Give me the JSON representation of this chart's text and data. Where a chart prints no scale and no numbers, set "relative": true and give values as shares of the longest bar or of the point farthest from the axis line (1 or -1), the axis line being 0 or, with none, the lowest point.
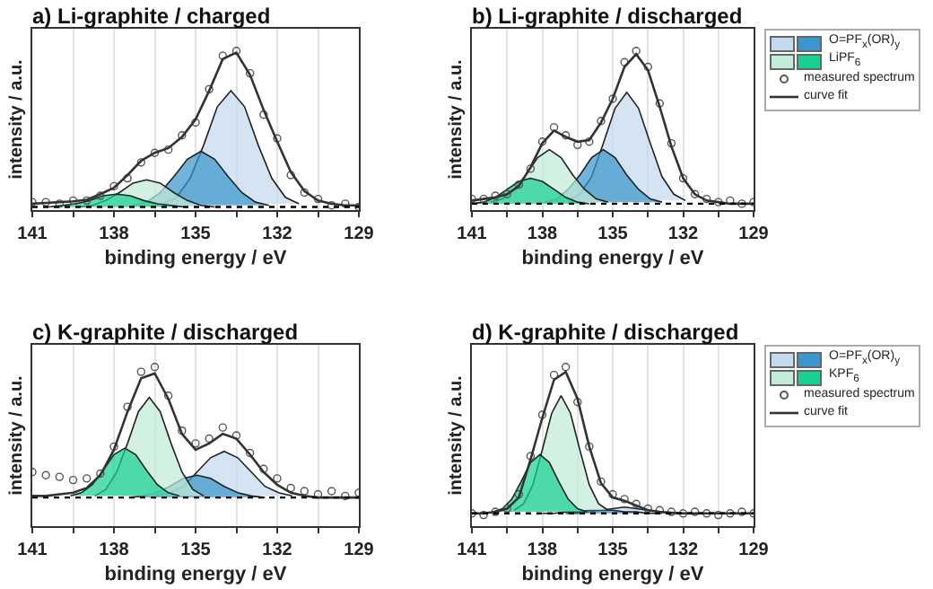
{
  "chart_data": [
    {
      "type": "area",
      "title": "a) Li-graphite / charged",
      "xlabel": "binding energy / eV",
      "ylabel": "intensity / a.u.",
      "relative": true,
      "grid": "x",
      "legend": false,
      "xlim": [
        141,
        129
      ],
      "xticks": [
        141,
        {
          "value": 139.5,
          "label": null
        },
        138,
        {
          "value": 136.5,
          "label": null
        },
        135,
        {
          "value": 133.5,
          "label": null
        },
        132,
        {
          "value": 130.5,
          "label": null
        },
        129
      ],
      "series": [
        {
          "type": "area",
          "color": "#c5d9ef",
          "x": [
            136.2,
            135.7,
            135.2,
            134.7,
            134.2,
            133.7,
            133.2,
            132.7,
            132.2,
            131.7,
            131.2
          ],
          "values": [
            0.04,
            0.08,
            0.2,
            0.41,
            0.65,
            0.75,
            0.65,
            0.41,
            0.2,
            0.08,
            0.04
          ]
        },
        {
          "type": "area",
          "color": "#3a96cc",
          "x": [
            137.3,
            136.8,
            136.3,
            135.8,
            135.3,
            134.8,
            134.3,
            133.8,
            133.3,
            132.8,
            132.3
          ],
          "values": [
            0.03,
            0.05,
            0.11,
            0.21,
            0.32,
            0.37,
            0.32,
            0.21,
            0.11,
            0.05,
            0.03
          ]
        },
        {
          "type": "area",
          "color": "#c2ecd7",
          "x": [
            139.3,
            138.8,
            138.3,
            137.8,
            137.3,
            136.8,
            136.3,
            135.8,
            135.3,
            134.8,
            134.3
          ],
          "values": [
            0.02,
            0.03,
            0.06,
            0.11,
            0.17,
            0.19,
            0.17,
            0.11,
            0.06,
            0.03,
            0.02
          ]
        },
        {
          "type": "area",
          "color": "#19d094",
          "x": [
            140.4,
            139.9,
            139.4,
            138.9,
            138.4,
            137.9,
            137.4,
            136.9,
            136.4,
            135.9,
            135.4
          ],
          "values": [
            0.02,
            0.03,
            0.04,
            0.06,
            0.09,
            0.1,
            0.09,
            0.06,
            0.04,
            0.03,
            0.02
          ]
        },
        {
          "type": "scatter",
          "marker": "circle",
          "color": "#555555",
          "x": [
            141,
            140.5,
            140,
            139.5,
            139,
            138.5,
            138,
            137.5,
            137,
            136.5,
            136,
            135.5,
            135,
            134.5,
            134,
            133.5,
            133,
            132.5,
            132,
            131.5,
            131,
            130.5,
            130,
            129.5,
            129
          ],
          "values": [
            0.05,
            0.05,
            0.04,
            0.06,
            0.06,
            0.09,
            0.15,
            0.2,
            0.3,
            0.36,
            0.38,
            0.47,
            0.55,
            0.76,
            0.97,
            1,
            0.86,
            0.6,
            0.45,
            0.22,
            0.11,
            0.07,
            0.03,
            0.04,
            0.02
          ]
        },
        {
          "type": "line",
          "color": "#333333",
          "line_style": "solid",
          "x": [
            141,
            140.5,
            140,
            139.5,
            139,
            138.5,
            138,
            137.5,
            137,
            136.5,
            136,
            135.5,
            135,
            134.5,
            134,
            133.5,
            133,
            132.5,
            132,
            131.5,
            131,
            130.5,
            130,
            129.5,
            129
          ],
          "values": [
            0.04,
            0.045,
            0.05,
            0.055,
            0.065,
            0.1,
            0.14,
            0.22,
            0.31,
            0.36,
            0.39,
            0.46,
            0.57,
            0.75,
            0.95,
            0.99,
            0.85,
            0.63,
            0.43,
            0.24,
            0.12,
            0.06,
            0.04,
            0.03,
            0.03
          ]
        },
        {
          "type": "line",
          "color": "#000000",
          "line_style": "dotted",
          "x": [
            141,
            129
          ],
          "values": [
            0.02,
            0.02
          ]
        }
      ]
    },
    {
      "type": "area",
      "title": "b) Li-graphite / discharged",
      "xlabel": "binding energy / eV",
      "ylabel": "intensity / a.u.",
      "relative": true,
      "grid": "x",
      "legend": "top right",
      "xlim": [
        141,
        129
      ],
      "xticks": [
        141,
        {
          "value": 139.5,
          "label": null
        },
        138,
        {
          "value": 136.5,
          "label": null
        },
        135,
        {
          "value": 133.5,
          "label": null
        },
        132,
        {
          "value": 130.5,
          "label": null
        },
        129
      ],
      "series": [
        {
          "type": "area",
          "color": "#c5d9ef",
          "x": [
            136.9,
            136.4,
            135.9,
            135.4,
            134.9,
            134.4,
            133.9,
            133.4,
            132.9,
            132.4,
            131.9
          ],
          "values": [
            0.06,
            0.1,
            0.21,
            0.42,
            0.64,
            0.74,
            0.64,
            0.42,
            0.21,
            0.1,
            0.06
          ]
        },
        {
          "type": "area",
          "name": "O=PF$_{x}$(OR)$_{y}$",
          "color": "#3a96cc",
          "x": [
            137.9,
            137.4,
            136.9,
            136.4,
            135.9,
            135.4,
            134.9,
            134.4,
            133.9,
            133.4,
            132.9
          ],
          "values": [
            0.05,
            0.07,
            0.13,
            0.22,
            0.33,
            0.38,
            0.33,
            0.22,
            0.13,
            0.07,
            0.05
          ]
        },
        {
          "type": "area",
          "color": "#c2ecd7",
          "x": [
            140.2,
            139.7,
            139.2,
            138.7,
            138.2,
            137.7,
            137.2,
            136.7,
            136.2,
            135.7,
            135.2
          ],
          "values": [
            0.05,
            0.07,
            0.13,
            0.22,
            0.33,
            0.38,
            0.33,
            0.22,
            0.13,
            0.07,
            0.05
          ]
        },
        {
          "type": "area",
          "name": "LiPF$_{6}$",
          "color": "#19d094",
          "x": [
            141,
            140.5,
            140,
            139.5,
            139,
            138.5,
            138,
            137.5,
            137,
            136.5,
            136
          ],
          "values": [
            0.04,
            0.05,
            0.08,
            0.13,
            0.18,
            0.2,
            0.18,
            0.13,
            0.08,
            0.05,
            0.04
          ]
        },
        {
          "type": "scatter",
          "name": "measured spectrum",
          "marker": "circle",
          "color": "#555555",
          "x": [
            141,
            140.5,
            140,
            139.5,
            139,
            138.5,
            138,
            137.5,
            137,
            136.5,
            136,
            135.5,
            135,
            134.5,
            134,
            133.5,
            133,
            132.5,
            132,
            131.5,
            131,
            130.5,
            130,
            129.5,
            129
          ],
          "values": [
            0.07,
            0.07,
            0.09,
            0.1,
            0.16,
            0.26,
            0.43,
            0.52,
            0.47,
            0.41,
            0.43,
            0.56,
            0.7,
            0.93,
            1,
            0.9,
            0.67,
            0.42,
            0.2,
            0.1,
            0.07,
            0.05,
            0.06,
            0.04,
            0.05
          ]
        },
        {
          "type": "line",
          "name": "curve fit",
          "color": "#333333",
          "line_style": "solid",
          "x": [
            141,
            140.5,
            140,
            139.5,
            139,
            138.5,
            138,
            137.5,
            137,
            136.5,
            136,
            135.5,
            135,
            134.5,
            134,
            133.5,
            133,
            132.5,
            132,
            131.5,
            131,
            130.5,
            130,
            129.5,
            129
          ],
          "values": [
            0.06,
            0.07,
            0.08,
            0.1,
            0.15,
            0.27,
            0.42,
            0.5,
            0.46,
            0.43,
            0.44,
            0.55,
            0.7,
            0.9,
            0.98,
            0.88,
            0.65,
            0.4,
            0.2,
            0.1,
            0.06,
            0.05,
            0.04,
            0.04,
            0.04
          ]
        },
        {
          "type": "line",
          "color": "#000000",
          "line_style": "dotted",
          "x": [
            141,
            129
          ],
          "values": [
            0.04,
            0.04
          ]
        }
      ]
    },
    {
      "type": "area",
      "title": "c) K-graphite / discharged",
      "xlabel": "binding energy / eV",
      "ylabel": "intensity / a.u.",
      "relative": true,
      "grid": "x",
      "legend": false,
      "xlim": [
        141,
        129
      ],
      "xticks": [
        141,
        {
          "value": 139.5,
          "label": null
        },
        138,
        {
          "value": 136.5,
          "label": null
        },
        135,
        {
          "value": 133.5,
          "label": null
        },
        132,
        {
          "value": 130.5,
          "label": null
        },
        129
      ],
      "series": [
        {
          "type": "area",
          "color": "#c5d9ef",
          "x": [
            136.45,
            135.95,
            135.45,
            134.95,
            134.45,
            133.95,
            133.45,
            132.95,
            132.45,
            131.95,
            131.45
          ],
          "values": [
            0.19,
            0.21,
            0.25,
            0.34,
            0.43,
            0.47,
            0.43,
            0.34,
            0.25,
            0.21,
            0.19
          ]
        },
        {
          "type": "area",
          "color": "#3a96cc",
          "x": [
            137.45,
            136.95,
            136.45,
            135.95,
            135.45,
            134.95,
            134.45,
            133.95,
            133.45,
            132.95,
            132.45
          ],
          "values": [
            0.18,
            0.19,
            0.21,
            0.25,
            0.3,
            0.32,
            0.3,
            0.25,
            0.21,
            0.19,
            0.18
          ]
        },
        {
          "type": "area",
          "color": "#c2ecd7",
          "x": [
            138.7,
            138.3,
            137.9,
            137.5,
            137.1,
            136.7,
            136.3,
            135.9,
            135.5,
            135.1,
            134.7
          ],
          "values": [
            0.19,
            0.23,
            0.34,
            0.52,
            0.72,
            0.81,
            0.72,
            0.52,
            0.34,
            0.23,
            0.19
          ]
        },
        {
          "type": "area",
          "color": "#19d094",
          "x": [
            139.6,
            139.2,
            138.8,
            138.4,
            138,
            137.6,
            137.2,
            136.8,
            136.4,
            136,
            135.6
          ],
          "values": [
            0.19,
            0.21,
            0.26,
            0.35,
            0.45,
            0.49,
            0.45,
            0.35,
            0.26,
            0.21,
            0.19
          ]
        },
        {
          "type": "scatter",
          "marker": "circle",
          "color": "#555555",
          "x": [
            141,
            140.5,
            140,
            139.5,
            139,
            138.5,
            138,
            137.5,
            137,
            136.5,
            136,
            135.5,
            135,
            134.5,
            134,
            133.5,
            133,
            132.5,
            132,
            131.5,
            131,
            130.5,
            130,
            129.5,
            129
          ],
          "values": [
            0.34,
            0.32,
            0.31,
            0.29,
            0.3,
            0.33,
            0.5,
            0.75,
            0.97,
            1,
            0.82,
            0.6,
            0.52,
            0.55,
            0.62,
            0.57,
            0.46,
            0.36,
            0.3,
            0.24,
            0.22,
            0.2,
            0.22,
            0.19,
            0.21
          ]
        },
        {
          "type": "line",
          "color": "#333333",
          "line_style": "solid",
          "x": [
            141,
            140.5,
            140,
            139.5,
            139,
            138.5,
            138,
            137.5,
            137,
            136.5,
            136,
            135.5,
            135,
            134.5,
            134,
            133.5,
            133,
            132.5,
            132,
            131.5,
            131,
            130.5,
            130,
            129.5,
            129
          ],
          "values": [
            0.19,
            0.19,
            0.2,
            0.21,
            0.24,
            0.32,
            0.48,
            0.72,
            0.93,
            0.96,
            0.8,
            0.58,
            0.48,
            0.52,
            0.58,
            0.55,
            0.45,
            0.34,
            0.26,
            0.21,
            0.19,
            0.18,
            0.18,
            0.18,
            0.18
          ]
        },
        {
          "type": "line",
          "color": "#000000",
          "line_style": "dotted",
          "x": [
            141,
            129
          ],
          "values": [
            0.18,
            0.18
          ]
        }
      ]
    },
    {
      "type": "area",
      "title": "d) K-graphite / discharged",
      "xlabel": "binding energy / eV",
      "ylabel": "intensity / a.u.",
      "relative": true,
      "grid": "x",
      "legend": "top right",
      "xlim": [
        141,
        129
      ],
      "xticks": [
        141,
        {
          "value": 139.5,
          "label": null
        },
        138,
        {
          "value": 136.5,
          "label": null
        },
        135,
        {
          "value": 133.5,
          "label": null
        },
        132,
        {
          "value": 130.5,
          "label": null
        },
        129
      ],
      "series": [
        {
          "type": "area",
          "color": "#c5d9ef",
          "x": [
            137,
            136.5,
            136,
            135.5,
            135,
            134.5,
            134,
            133.5,
            133,
            132.5,
            132
          ],
          "values": [
            0.08,
            0.08,
            0.09,
            0.1,
            0.11,
            0.12,
            0.11,
            0.1,
            0.09,
            0.08,
            0.08
          ]
        },
        {
          "type": "area",
          "name": "O=PF$_{x}$(OR)$_{y}$",
          "color": "#3a96cc",
          "x": [
            138,
            137.5,
            137,
            136.5,
            136,
            135.5,
            135,
            134.5,
            134,
            133.5,
            133
          ],
          "values": [
            0.08,
            0.08,
            0.09,
            0.09,
            0.1,
            0.1,
            0.1,
            0.09,
            0.09,
            0.08,
            0.08
          ]
        },
        {
          "type": "area",
          "color": "#c2ecd7",
          "x": [
            139.2,
            138.8,
            138.4,
            138,
            137.6,
            137.2,
            136.8,
            136.4,
            136,
            135.6,
            135.2
          ],
          "values": [
            0.1,
            0.14,
            0.26,
            0.48,
            0.71,
            0.82,
            0.71,
            0.48,
            0.26,
            0.14,
            0.1
          ]
        },
        {
          "type": "area",
          "name": "KPF$_{6}$",
          "color": "#19d094",
          "x": [
            140.1,
            139.7,
            139.3,
            138.9,
            138.5,
            138.1,
            137.7,
            137.3,
            136.9,
            136.5,
            136.1
          ],
          "values": [
            0.09,
            0.11,
            0.17,
            0.28,
            0.4,
            0.45,
            0.4,
            0.28,
            0.17,
            0.11,
            0.09
          ]
        },
        {
          "type": "scatter",
          "name": "measured spectrum",
          "marker": "circle",
          "color": "#555555",
          "x": [
            141,
            140.5,
            140,
            139.5,
            139,
            138.5,
            138,
            137.5,
            137,
            136.5,
            136,
            135.5,
            135,
            134.5,
            134,
            133.5,
            133,
            132.5,
            132,
            131.5,
            131,
            130.5,
            130,
            129.5,
            129
          ],
          "values": [
            0.08,
            0.07,
            0.09,
            0.11,
            0.2,
            0.44,
            0.7,
            0.95,
            1,
            0.78,
            0.5,
            0.28,
            0.2,
            0.17,
            0.14,
            0.11,
            0.1,
            0.09,
            0.08,
            0.09,
            0.08,
            0.07,
            0.08,
            0.09,
            0.08
          ]
        },
        {
          "type": "line",
          "name": "curve fit",
          "color": "#333333",
          "line_style": "solid",
          "x": [
            141,
            140.5,
            140,
            139.5,
            139,
            138.5,
            138,
            137.5,
            137,
            136.5,
            136,
            135.5,
            135,
            134.5,
            134,
            133.5,
            133,
            132.5,
            132,
            131.5,
            131,
            130.5,
            130,
            129.5,
            129
          ],
          "values": [
            0.08,
            0.08,
            0.09,
            0.11,
            0.18,
            0.42,
            0.68,
            0.92,
            0.97,
            0.8,
            0.5,
            0.27,
            0.18,
            0.16,
            0.13,
            0.1,
            0.09,
            0.085,
            0.08,
            0.08,
            0.08,
            0.08,
            0.08,
            0.08,
            0.08
          ]
        },
        {
          "type": "line",
          "color": "#000000",
          "line_style": "dotted",
          "x": [
            141,
            129
          ],
          "values": [
            0.08,
            0.08
          ]
        }
      ]
    }
  ]
}
